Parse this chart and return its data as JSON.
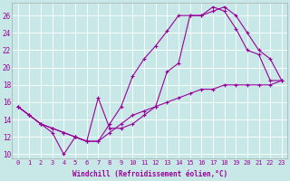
{
  "xlabel": "Windchill (Refroidissement éolien,°C)",
  "background_color": "#c8e8e8",
  "line_color": "#990099",
  "xlim_min": -0.5,
  "xlim_max": 23.5,
  "ylim_min": 9.5,
  "ylim_max": 27.5,
  "yticks": [
    10,
    12,
    14,
    16,
    18,
    20,
    22,
    24,
    26
  ],
  "xticks": [
    0,
    1,
    2,
    3,
    4,
    5,
    6,
    7,
    8,
    9,
    10,
    11,
    12,
    13,
    14,
    15,
    16,
    17,
    18,
    19,
    20,
    21,
    22,
    23
  ],
  "series1_x": [
    0,
    1,
    2,
    3,
    4,
    5,
    6,
    7,
    8,
    9,
    10,
    11,
    12,
    13,
    14,
    15,
    16,
    17,
    18,
    19,
    20,
    21,
    22,
    23
  ],
  "series1_y": [
    15.5,
    14.5,
    13.5,
    12.5,
    10.0,
    12.0,
    11.5,
    16.5,
    13.0,
    13.0,
    13.5,
    14.5,
    15.5,
    19.5,
    20.5,
    26.0,
    26.0,
    26.5,
    27.0,
    26.0,
    24.0,
    22.0,
    21.0,
    18.5
  ],
  "series2_x": [
    0,
    1,
    2,
    3,
    4,
    5,
    6,
    7,
    8,
    9,
    10,
    11,
    12,
    13,
    14,
    15,
    16,
    17,
    18,
    19,
    20,
    21,
    22,
    23
  ],
  "series2_y": [
    15.5,
    14.5,
    13.5,
    13.0,
    12.5,
    12.0,
    11.5,
    11.5,
    13.5,
    15.5,
    19.0,
    21.0,
    22.5,
    24.2,
    26.0,
    26.0,
    26.0,
    27.0,
    26.5,
    24.5,
    22.0,
    21.5,
    18.5,
    18.5
  ],
  "series3_x": [
    0,
    1,
    2,
    3,
    4,
    5,
    6,
    7,
    8,
    9,
    10,
    11,
    12,
    13,
    14,
    15,
    16,
    17,
    18,
    19,
    20,
    21,
    22,
    23
  ],
  "series3_y": [
    15.5,
    14.5,
    13.5,
    13.0,
    12.5,
    12.0,
    11.5,
    11.5,
    12.5,
    13.5,
    14.5,
    15.0,
    15.5,
    16.0,
    16.5,
    17.0,
    17.5,
    17.5,
    18.0,
    18.0,
    18.0,
    18.0,
    18.0,
    18.5
  ]
}
